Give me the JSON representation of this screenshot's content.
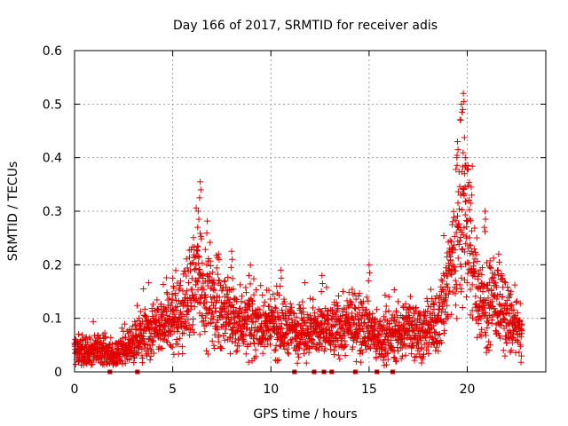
{
  "chart_data": {
    "type": "scatter",
    "title": "Day 166 of 2017, SRMTID for receiver adis",
    "xlabel": "GPS time / hours",
    "ylabel": "SRMTID / TECUs",
    "xlim": [
      0,
      24
    ],
    "ylim": [
      0,
      0.6
    ],
    "x_ticks": [
      0,
      5,
      10,
      15,
      20
    ],
    "x_tick_labels": [
      "0",
      "5",
      "10",
      "15",
      "20"
    ],
    "y_ticks": [
      0,
      0.1,
      0.2,
      0.3,
      0.4,
      0.5,
      0.6
    ],
    "y_tick_labels": [
      "0",
      "0.1",
      "0.2",
      "0.3",
      "0.4",
      "0.5",
      "0.6"
    ],
    "grid": true,
    "marker": "plus",
    "color": "#e00000",
    "trend_x": [
      0,
      0.5,
      1,
      1.5,
      1.9,
      2.2,
      2.5,
      3.0,
      3.5,
      4.0,
      4.5,
      5.0,
      5.5,
      6.0,
      6.3,
      6.6,
      7.0,
      8.0,
      9.0,
      10.0,
      11.0,
      12.0,
      13.0,
      14.0,
      14.5,
      15.0,
      15.5,
      16.0,
      17.0,
      18.0,
      18.5,
      19.0,
      19.5,
      19.8,
      20.0,
      20.5,
      21.0,
      21.5,
      22.0,
      22.7
    ],
    "trend_y": [
      0.04,
      0.035,
      0.04,
      0.038,
      0.03,
      0.03,
      0.04,
      0.05,
      0.065,
      0.075,
      0.085,
      0.1,
      0.11,
      0.15,
      0.19,
      0.16,
      0.13,
      0.1,
      0.09,
      0.085,
      0.08,
      0.075,
      0.08,
      0.085,
      0.09,
      0.08,
      0.06,
      0.065,
      0.08,
      0.075,
      0.09,
      0.17,
      0.26,
      0.3,
      0.25,
      0.15,
      0.12,
      0.13,
      0.1,
      0.07
    ],
    "peaks": [
      {
        "x": 6.4,
        "y": 0.355
      },
      {
        "x": 6.3,
        "y": 0.3
      },
      {
        "x": 19.8,
        "y": 0.52
      },
      {
        "x": 19.7,
        "y": 0.5
      },
      {
        "x": 19.5,
        "y": 0.43
      },
      {
        "x": 19.9,
        "y": 0.4
      },
      {
        "x": 20.2,
        "y": 0.345
      },
      {
        "x": 20.9,
        "y": 0.3
      },
      {
        "x": 8.0,
        "y": 0.225
      },
      {
        "x": 10.5,
        "y": 0.19
      },
      {
        "x": 12.6,
        "y": 0.18
      },
      {
        "x": 15.0,
        "y": 0.2
      },
      {
        "x": 21.6,
        "y": 0.22
      },
      {
        "x": 5.0,
        "y": 0.175
      }
    ],
    "x_range_data": [
      0,
      22.8
    ],
    "zero_markers_x": [
      1.8,
      3.2,
      11.2,
      12.2,
      12.7,
      13.1,
      14.3,
      15.4,
      16.2
    ]
  }
}
